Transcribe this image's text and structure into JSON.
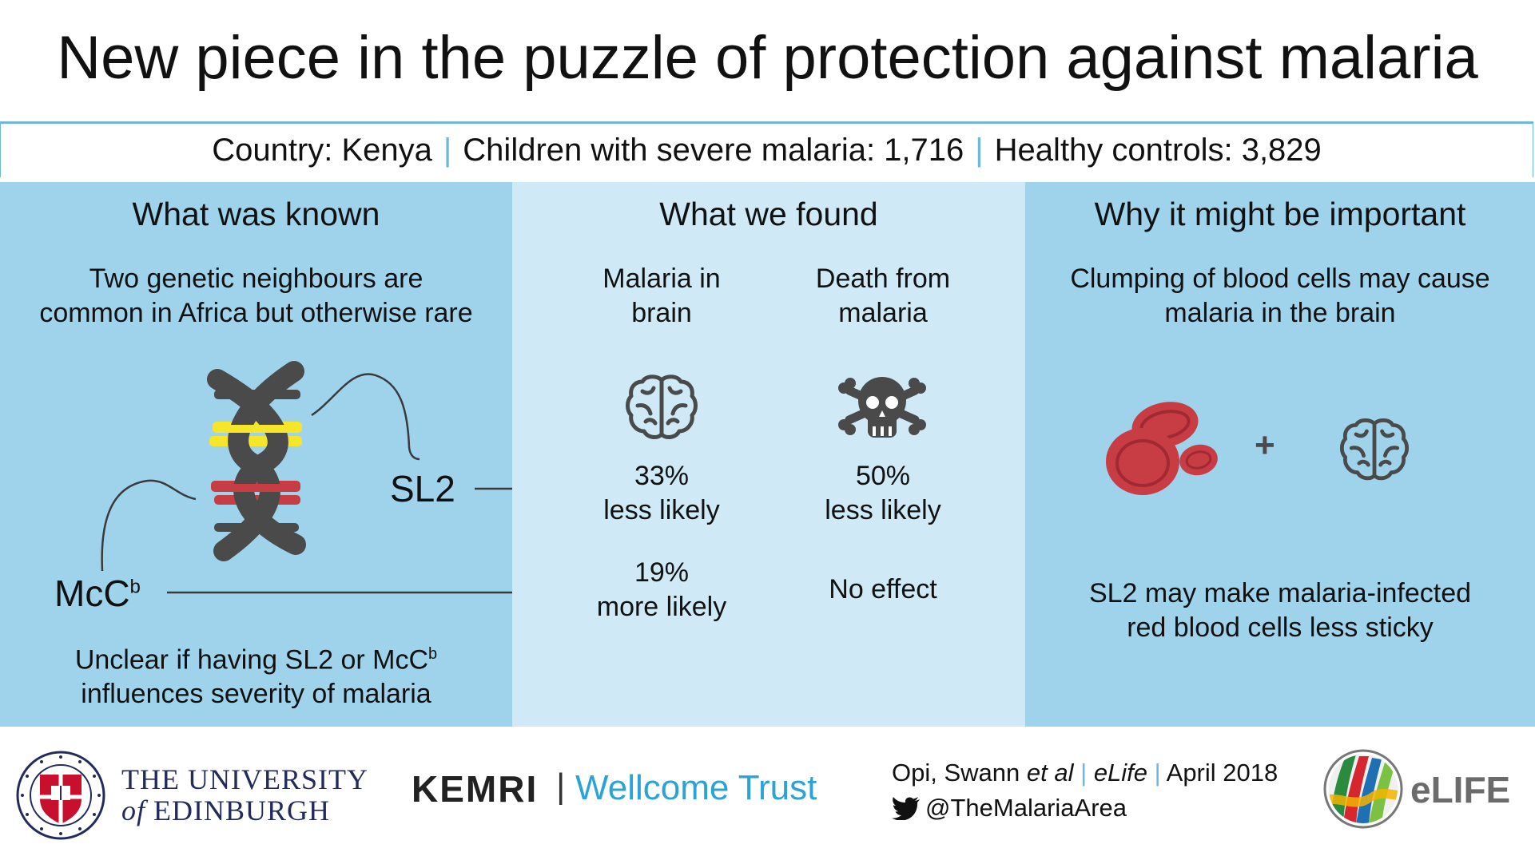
{
  "title": "New piece in the puzzle of protection against malaria",
  "stats": {
    "country": "Country: Kenya",
    "children": "Children with severe malaria: 1,716",
    "controls": "Healthy controls: 3,829",
    "separator": "|"
  },
  "known": {
    "heading": "What was known",
    "intro_line1": "Two genetic neighbours are",
    "intro_line2": "common in Africa but otherwise rare",
    "sl2_label": "SL2",
    "mcc_label": "McC",
    "mcc_sup": "b",
    "outro_line1": "Unclear if having SL2 or McC",
    "outro_sup": "b",
    "outro_line2": "influences severity of malaria"
  },
  "found": {
    "heading": "What we found",
    "col1_header_line1": "Malaria in",
    "col1_header_line2": "brain",
    "col2_header_line1": "Death from",
    "col2_header_line2": "malaria",
    "sl2_brain_line1": "33%",
    "sl2_brain_line2": "less likely",
    "sl2_death_line1": "50%",
    "sl2_death_line2": "less likely",
    "mcc_brain_line1": "19%",
    "mcc_brain_line2": "more likely",
    "mcc_death": "No effect"
  },
  "important": {
    "heading": "Why it might be important",
    "top_line1": "Clumping of blood cells may cause",
    "top_line2": "malaria in the brain",
    "plus": "+",
    "bottom_line1": "SL2 may make malaria-infected",
    "bottom_line2": "red blood cells less sticky"
  },
  "footer": {
    "uni_line1": "THE UNIVERSITY",
    "uni_of": "of",
    "uni_line2": "EDINBURGH",
    "kemri": "KEMRI",
    "bar": "|",
    "wellcome": "Wellcome Trust",
    "cite_authors": "Opi, Swann",
    "cite_etal": "et al",
    "cite_journal": "eLife",
    "cite_date": "April 2018",
    "twitter": "@TheMalariaArea",
    "elife_logo": "eLIFE"
  },
  "icons": [
    "brain-icon",
    "skull-crossbones-icon",
    "dna-icon",
    "red-blood-cells-icon",
    "twitter-icon",
    "edinburgh-crest-icon",
    "elife-logo-icon"
  ],
  "colors": {
    "panel_dark": "#9fd3ec",
    "panel_light": "#cfeaf6",
    "accent": "#6fb7dc",
    "blood": "#c83c44",
    "icon_grey": "#4a4a4a",
    "dna_yellow": "#f5e62a",
    "dna_red": "#c83c44"
  }
}
